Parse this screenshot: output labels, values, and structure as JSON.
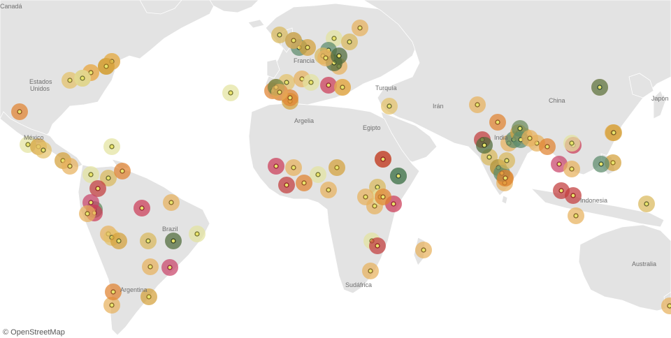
{
  "map": {
    "attribution": "© OpenStreetMap",
    "colors": {
      "ocean": "#ffffff",
      "land": "#e3e3e3",
      "border": "#ffffff"
    },
    "labels": [
      {
        "id": "canada",
        "text": "Canadá"
      },
      {
        "id": "usa",
        "text": "Estados\nUnidos"
      },
      {
        "id": "mexico",
        "text": "México"
      },
      {
        "id": "brazil",
        "text": "Brazil"
      },
      {
        "id": "argentina",
        "text": "Argentina"
      },
      {
        "id": "france",
        "text": "Francia"
      },
      {
        "id": "turkey",
        "text": "Turquía"
      },
      {
        "id": "iran",
        "text": "Irán"
      },
      {
        "id": "algeria",
        "text": "Argelia"
      },
      {
        "id": "egypt",
        "text": "Egipto"
      },
      {
        "id": "india",
        "text": "India"
      },
      {
        "id": "china",
        "text": "China"
      },
      {
        "id": "japan",
        "text": "Japón"
      },
      {
        "id": "indonesia",
        "text": "Indonesia"
      },
      {
        "id": "southafrica",
        "text": "Sudáfrica"
      },
      {
        "id": "australia",
        "text": "Australia"
      }
    ],
    "markers": [
      {
        "c": "#d9b85c",
        "d": "#5b5b2c"
      },
      {
        "c": "#d4a13a",
        "d": "#8a6a1c"
      },
      {
        "c": "#e7b25d",
        "d": "#7a5a22"
      },
      {
        "c": "#d4a13a",
        "d": "#6a5220"
      },
      {
        "c": "#e4c26a",
        "d": "#7a6a2c"
      },
      {
        "c": "#e0822f",
        "d": "#8a4a1c"
      },
      {
        "c": "#e3e3a0",
        "d": "#6a6a2c"
      },
      {
        "c": "#d4a13a",
        "d": "#8a6a1c"
      },
      {
        "c": "#e4c26a",
        "d": "#5b5b2c"
      },
      {
        "c": "#d4a13a",
        "d": "#8a6a1c"
      },
      {
        "c": "#e7b25d",
        "d": "#7a5a22"
      },
      {
        "c": "#e3e3a0",
        "d": "#6a6a2c"
      },
      {
        "c": "#d9b85c",
        "d": "#5b5b2c"
      },
      {
        "c": "#e0822f",
        "d": "#8a4a1c"
      },
      {
        "c": "#c23b3b",
        "d": "#8a1c1c"
      },
      {
        "c": "#5b8a5b",
        "d": "#2c4a2c"
      },
      {
        "c": "#c9446a",
        "d": "#8a1c3a"
      },
      {
        "c": "#cc3b57",
        "d": "#8a1c2c"
      },
      {
        "c": "#e7b25d",
        "d": "#7a5a22"
      },
      {
        "c": "#e7b25d",
        "d": "#7a5a22"
      },
      {
        "c": "#e4c26a",
        "d": "#5b5b2c"
      },
      {
        "c": "#d4a13a",
        "d": "#5b5b2c"
      },
      {
        "c": "#d9b85c",
        "d": "#5b5b2c"
      },
      {
        "c": "#e7b25d",
        "d": "#7a5a22"
      },
      {
        "c": "#c9446a",
        "d": "#8a1c3a"
      },
      {
        "c": "#4f6b3a",
        "d": "#2c3a1c"
      },
      {
        "c": "#e3e3a0",
        "d": "#6a6a2c"
      },
      {
        "c": "#e7b25d",
        "d": "#7a5a22"
      },
      {
        "c": "#e0822f",
        "d": "#8a4a1c"
      },
      {
        "c": "#d4a13a",
        "d": "#8a6a1c"
      },
      {
        "c": "#cc3b57",
        "d": "#8a1c2c"
      },
      {
        "c": "#e7b25d",
        "d": "#7a5a22"
      },
      {
        "c": "#e3e3a0",
        "d": "#6a6a2c"
      },
      {
        "c": "#d9b85c",
        "d": "#5b5b2c"
      },
      {
        "c": "#6b8a4f",
        "d": "#2c3a1c"
      },
      {
        "c": "#5b8a6b",
        "d": "#2c4a3a"
      },
      {
        "c": "#e3e3a0",
        "d": "#6a6a2c"
      },
      {
        "c": "#d4a13a",
        "d": "#6a5220"
      },
      {
        "c": "#e0822f",
        "d": "#8a4a1c"
      },
      {
        "c": "#e4c26a",
        "d": "#5b5b2c"
      },
      {
        "c": "#5b8a6b",
        "d": "#2c4a3a"
      },
      {
        "c": "#d9b85c",
        "d": "#5b5b2c"
      },
      {
        "c": "#e7b25d",
        "d": "#7a5a22"
      },
      {
        "c": "#e7b25d",
        "d": "#7a5a22"
      },
      {
        "c": "#d4a13a",
        "d": "#6a5220"
      },
      {
        "c": "#c23b3b",
        "d": "#8a1c1c"
      },
      {
        "c": "#e3e3a0",
        "d": "#6a6a2c"
      },
      {
        "c": "#d4a13a",
        "d": "#8a6a1c"
      },
      {
        "c": "#e0822f",
        "d": "#8a4a1c"
      },
      {
        "c": "#e7b25d",
        "d": "#7a5a22"
      },
      {
        "c": "#d9b85c",
        "d": "#5b5b2c"
      },
      {
        "c": "#4f6b3a",
        "d": "#2c3a1c"
      },
      {
        "c": "#e4c26a",
        "d": "#5b5b2c"
      },
      {
        "c": "#cc3b57",
        "d": "#8a1c2c"
      },
      {
        "c": "#e7b25d",
        "d": "#7a5a22"
      },
      {
        "c": "#c23b3b",
        "d": "#8a1c1c"
      },
      {
        "c": "#e3e3a0",
        "d": "#6a6a2c"
      },
      {
        "c": "#d4a13a",
        "d": "#8a6a1c"
      },
      {
        "c": "#e0822f",
        "d": "#8a4a1c"
      },
      {
        "c": "#e7b25d",
        "d": "#7a5a22"
      },
      {
        "c": "#d9b85c",
        "d": "#5b5b2c"
      },
      {
        "c": "#e7b25d",
        "d": "#7a5a22"
      },
      {
        "c": "#e3e3a0",
        "d": "#6a6a2c"
      },
      {
        "c": "#cc3b57",
        "d": "#8a1c2c"
      },
      {
        "c": "#e7b25d",
        "d": "#7a5a22"
      },
      {
        "c": "#4f6b3a",
        "d": "#2c3a1c"
      },
      {
        "c": "#e3e3a0",
        "d": "#6a6a2c"
      },
      {
        "c": "#c23b3b",
        "d": "#8a1c1c"
      },
      {
        "c": "#e7b25d",
        "d": "#7a5a22"
      },
      {
        "c": "#e7b25d",
        "d": "#7a5a22"
      },
      {
        "c": "#e7b25d",
        "d": "#7a5a22"
      },
      {
        "c": "#e0822f",
        "d": "#8a4a1c"
      },
      {
        "c": "#c23b3b",
        "d": "#8a1c1c"
      },
      {
        "c": "#d9b85c",
        "d": "#5b5b2c"
      },
      {
        "c": "#4f6b3a",
        "d": "#2c3a1c"
      },
      {
        "c": "#5b8a6b",
        "d": "#2c4a3a"
      },
      {
        "c": "#e7b25d",
        "d": "#7a5a22"
      },
      {
        "c": "#d4a13a",
        "d": "#6a5220"
      },
      {
        "c": "#e7b25d",
        "d": "#7a5a22"
      },
      {
        "c": "#5b8a6b",
        "d": "#2c4a3a"
      },
      {
        "c": "#d4a13a",
        "d": "#8a6a1c"
      },
      {
        "c": "#e7b25d",
        "d": "#7a5a22"
      },
      {
        "c": "#e0822f",
        "d": "#8a4a1c"
      },
      {
        "c": "#cc3b57",
        "d": "#8a1c2c"
      },
      {
        "c": "#c9446a",
        "d": "#8a1c3a"
      },
      {
        "c": "#e7b25d",
        "d": "#7a5a22"
      },
      {
        "c": "#c23b3b",
        "d": "#8a1c1c"
      },
      {
        "c": "#e7b25d",
        "d": "#7a5a22"
      },
      {
        "c": "#d4a13a",
        "d": "#8a6a1c"
      },
      {
        "c": "#d9b85c",
        "d": "#5b5b2c"
      },
      {
        "c": "#e0822f",
        "d": "#8a4a1c"
      },
      {
        "c": "#e7b25d",
        "d": "#7a5a22"
      },
      {
        "c": "#e7b25d",
        "d": "#7a5a22"
      },
      {
        "c": "#6b8a5b",
        "d": "#2c4a2c"
      },
      {
        "c": "#d4a13a",
        "d": "#6a5220"
      },
      {
        "c": "#e0822f",
        "d": "#8a4a1c"
      },
      {
        "c": "#6b8a4f",
        "d": "#2c3a1c"
      },
      {
        "c": "#e7b25d",
        "d": "#7a5a22"
      },
      {
        "c": "#e7b25d",
        "d": "#7a5a22"
      },
      {
        "c": "#cc3b57",
        "d": "#8a1c2c"
      },
      {
        "c": "#e7b25d",
        "d": "#7a5a22"
      },
      {
        "c": "#e3e3a0",
        "d": "#6a6a2c"
      },
      {
        "c": "#e7b25d",
        "d": "#7a5a22"
      },
      {
        "c": "#4f6b3a",
        "d": "#2c3a1c"
      },
      {
        "c": "#e0822f",
        "d": "#8a4a1c"
      },
      {
        "c": "#c23b3b",
        "d": "#8a1c1c"
      },
      {
        "c": "#5b8a6b",
        "d": "#2c4a3a"
      },
      {
        "c": "#d4a13a",
        "d": "#6a5220"
      },
      {
        "c": "#5b8a6b",
        "d": "#2c4a3a"
      },
      {
        "c": "#e0822f",
        "d": "#8a4a1c"
      },
      {
        "c": "#d9b85c",
        "d": "#5b5b2c"
      },
      {
        "c": "#5b8a6b",
        "d": "#2c4a3a"
      },
      {
        "c": "#e7b25d",
        "d": "#7a5a22"
      },
      {
        "c": "#e3e3a0",
        "d": "#6a6a2c"
      },
      {
        "c": "#d4a13a",
        "d": "#6a5220"
      },
      {
        "c": "#5b8a6b",
        "d": "#2c4a3a"
      },
      {
        "c": "#5b8a6b",
        "d": "#2c4a3a"
      },
      {
        "c": "#c23b3b",
        "d": "#8a1c1c"
      },
      {
        "c": "#e7b25d",
        "d": "#7a5a22"
      },
      {
        "c": "#e7b25d",
        "d": "#7a5a22"
      },
      {
        "c": "#d4a13a",
        "d": "#8a6a1c"
      },
      {
        "c": "#e7b25d",
        "d": "#7a5a22"
      },
      {
        "c": "#e3e3a0",
        "d": "#6a6a2c"
      }
    ]
  }
}
